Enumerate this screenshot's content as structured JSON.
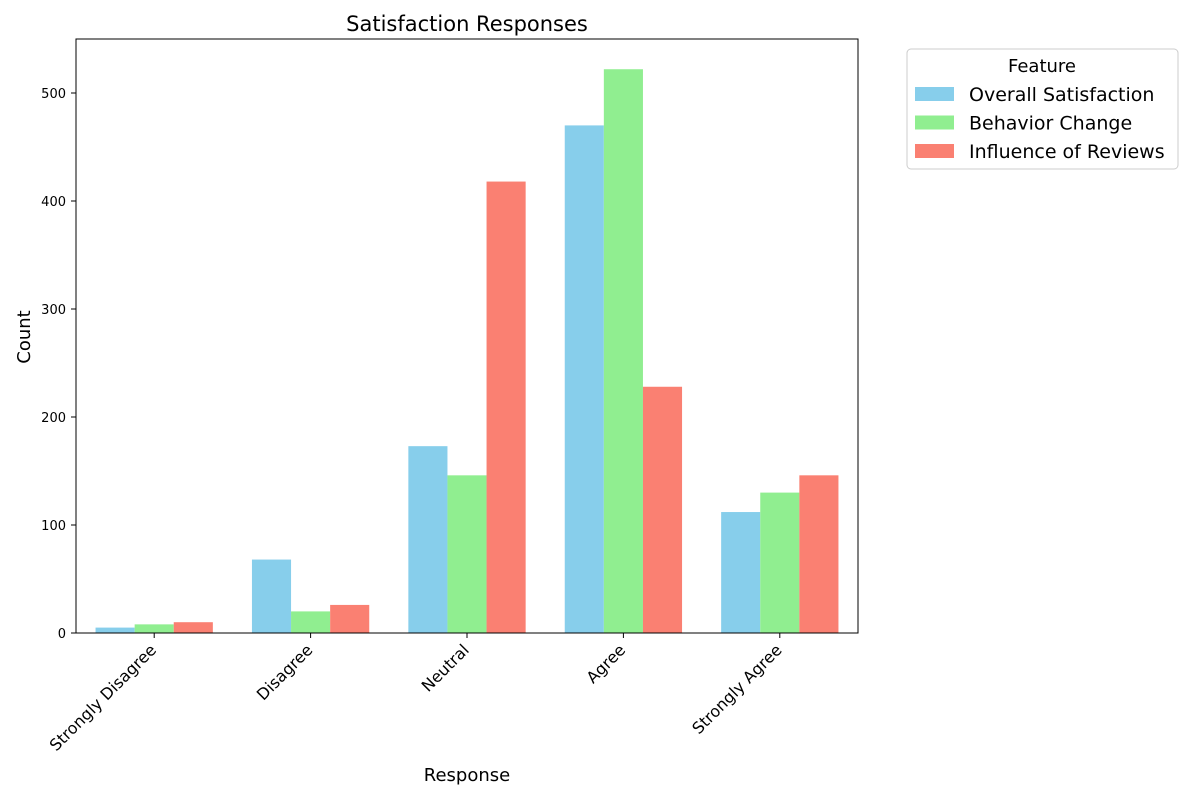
{
  "chart_data": {
    "type": "bar",
    "title": "Satisfaction Responses",
    "xlabel": "Response",
    "ylabel": "Count",
    "categories": [
      "Strongly Disagree",
      "Disagree",
      "Neutral",
      "Agree",
      "Strongly Agree"
    ],
    "series": [
      {
        "name": "Overall Satisfaction",
        "color": "#87ceeb",
        "values": [
          5,
          68,
          173,
          470,
          112
        ]
      },
      {
        "name": "Behavior Change",
        "color": "#90ee90",
        "values": [
          8,
          20,
          146,
          522,
          130
        ]
      },
      {
        "name": "Influence of Reviews",
        "color": "#fa8072",
        "values": [
          10,
          26,
          418,
          228,
          146
        ]
      }
    ],
    "ylim": [
      0,
      550
    ],
    "yticks": [
      0,
      100,
      200,
      300,
      400,
      500
    ],
    "grid": false,
    "legend": {
      "title": "Feature",
      "placement": "outside-top-right"
    }
  }
}
